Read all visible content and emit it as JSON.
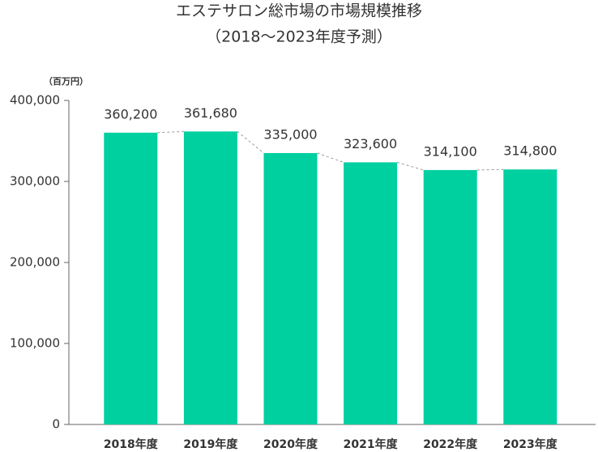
{
  "chart_data": {
    "type": "bar",
    "title": "エステサロン総市場の市場規模推移",
    "subtitle": "（2018～2023年度予測）",
    "ylabel": "（百万円）",
    "categories": [
      "2018年度",
      "2019年度",
      "2020年度",
      "2021年度",
      "2022年度",
      "2023年度"
    ],
    "values": [
      360200,
      361680,
      335000,
      323600,
      314100,
      314800
    ],
    "value_labels": [
      "360,200",
      "361,680",
      "335,000",
      "323,600",
      "314,100",
      "314,800"
    ],
    "color": "#00cfa0",
    "ylim": [
      0,
      400000
    ],
    "yticks": [
      0,
      {
        "value": 100000,
        "label": "100,000"
      },
      {
        "value": 200000,
        "label": "200,000"
      },
      {
        "value": 300000,
        "label": "300,000"
      },
      {
        "value": 400000,
        "label": "400,000"
      }
    ],
    "connector": true
  }
}
